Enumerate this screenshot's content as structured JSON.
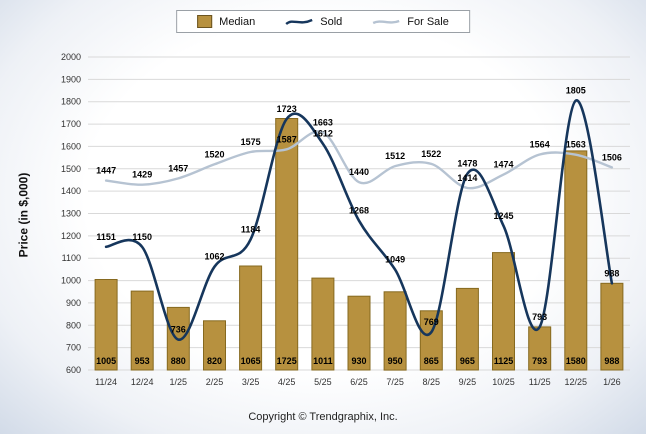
{
  "legend": {
    "median_label": "Median",
    "sold_label": "Sold",
    "for_sale_label": "For Sale"
  },
  "ylabel": "Price (in $,000)",
  "footer": {
    "copyright": "Copyright © Trendgraphix, Inc."
  },
  "chart_data": {
    "type": "combo",
    "title": "",
    "xlabel": "",
    "ylabel": "Price (in $,000)",
    "categories": [
      "11/24",
      "12/24",
      "1/25",
      "2/25",
      "3/25",
      "4/25",
      "5/25",
      "6/25",
      "7/25",
      "8/25",
      "9/25",
      "10/25",
      "11/25",
      "12/25",
      "1/26"
    ],
    "series": [
      {
        "name": "Median",
        "type": "bar",
        "color": "#b7913f",
        "border_color": "#86691f",
        "values": [
          1005,
          953,
          880,
          820,
          1065,
          1725,
          1011,
          930,
          950,
          865,
          965,
          1125,
          793,
          1580,
          988
        ]
      },
      {
        "name": "Sold",
        "type": "line",
        "color": "#16365c",
        "values": [
          1151,
          1150,
          736,
          1062,
          1184,
          1723,
          1612,
          1268,
          1049,
          769,
          1478,
          1245,
          793,
          1805,
          988
        ]
      },
      {
        "name": "For Sale",
        "type": "line",
        "color": "#b6c3d2",
        "values": [
          1447,
          1429,
          1457,
          1520,
          1575,
          1587,
          1663,
          1440,
          1512,
          1522,
          1414,
          1474,
          1564,
          1563,
          1506
        ]
      }
    ],
    "ylim": [
      600,
      2000
    ],
    "ytick_step": 100,
    "grid": true,
    "legend_position": "top",
    "gridline_color": "#d9d9d9",
    "label_color": "#000000",
    "tick_color": "#333333"
  }
}
